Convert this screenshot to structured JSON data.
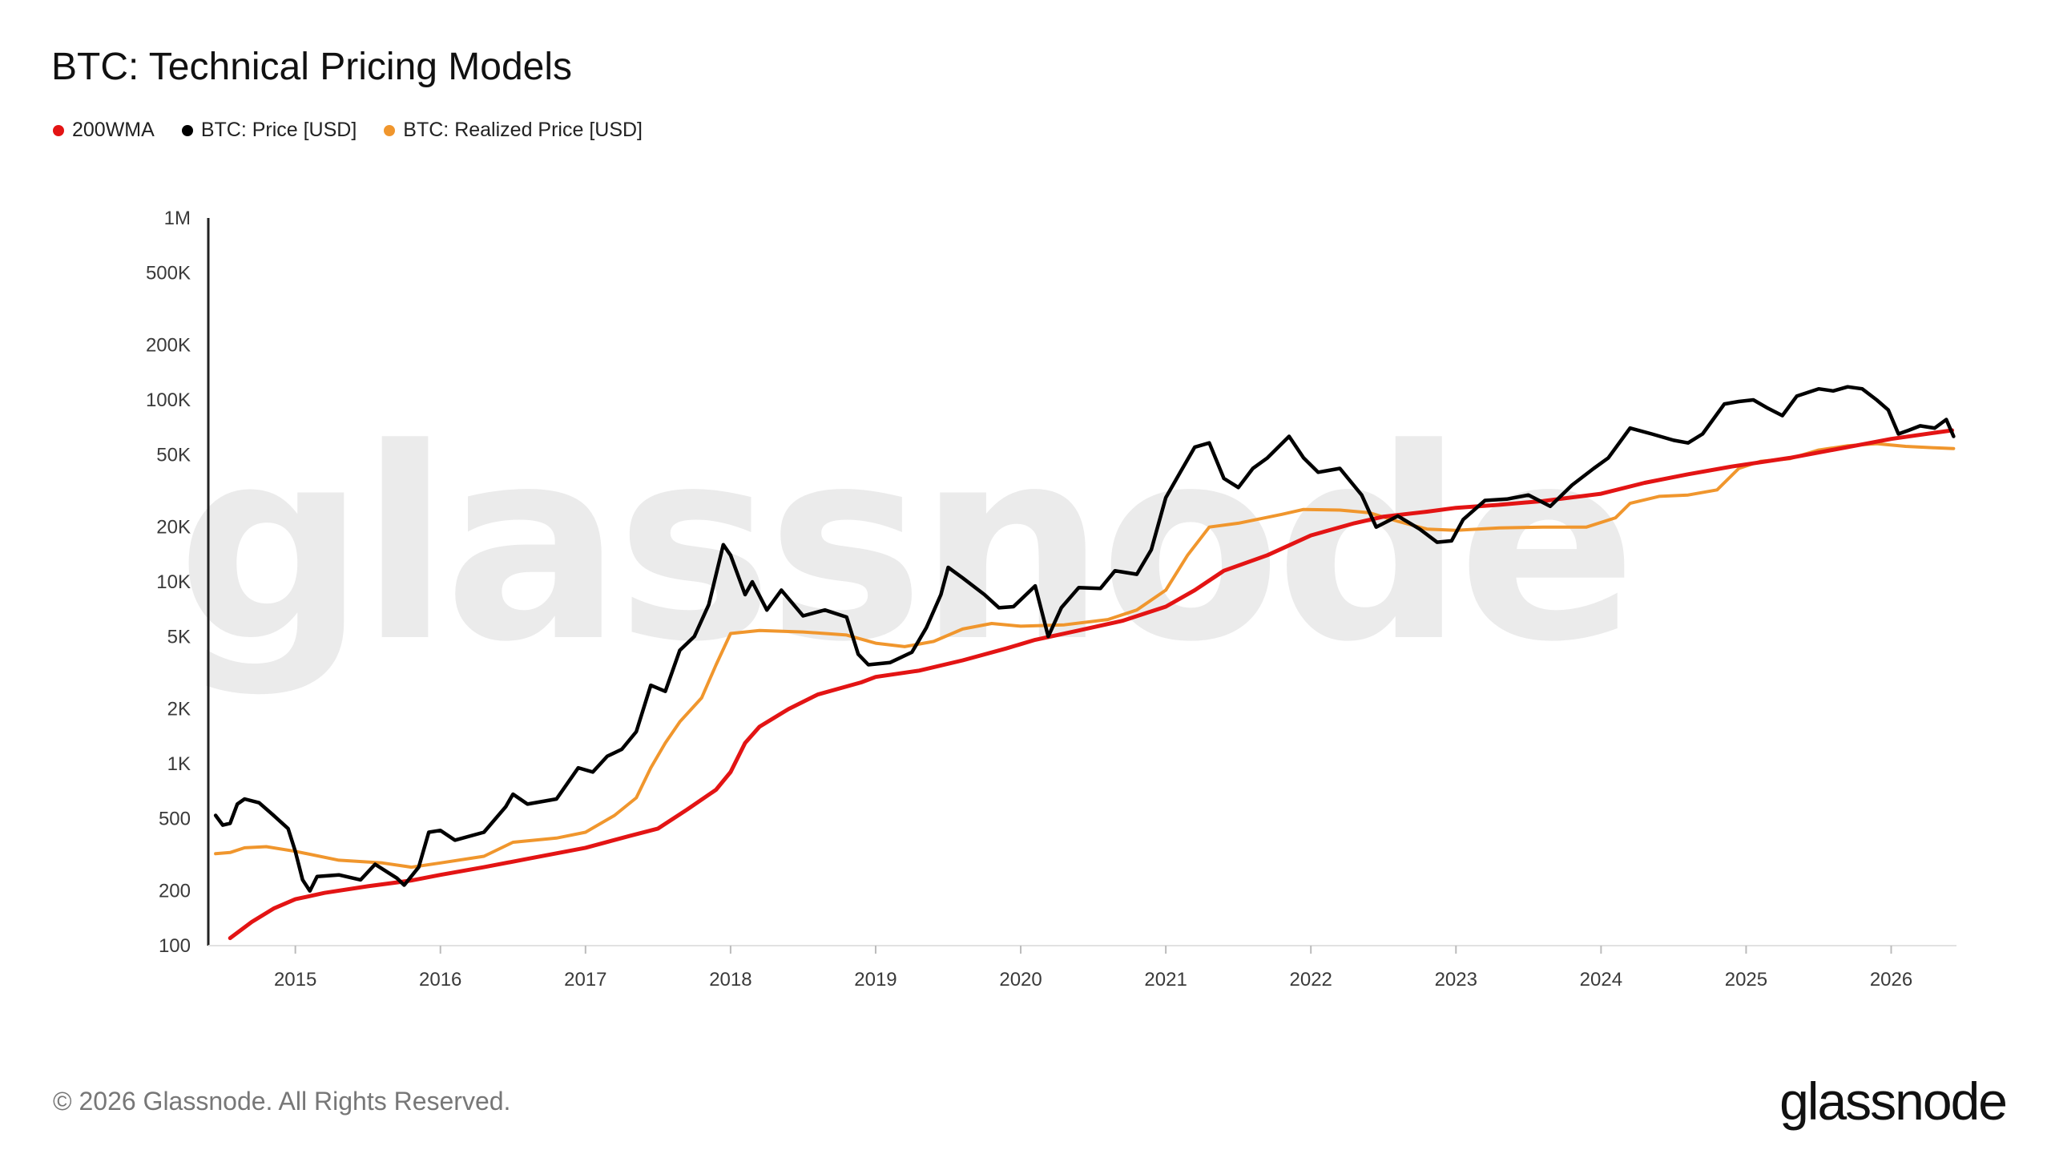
{
  "header": {
    "title": "BTC: Technical Pricing Models"
  },
  "legend": [
    {
      "label": "200WMA",
      "color": "#e31414"
    },
    {
      "label": "BTC: Price [USD]",
      "color": "#000000"
    },
    {
      "label": "BTC: Realized Price [USD]",
      "color": "#f0962d"
    }
  ],
  "watermark": "glassnode",
  "footer": {
    "copyright": "© 2026 Glassnode. All Rights Reserved.",
    "logo": "glassnode"
  },
  "chart_data": {
    "type": "line",
    "title": "BTC: Technical Pricing Models",
    "xlabel": "",
    "ylabel": "",
    "y_scale": "log",
    "ylim": [
      100,
      1000000
    ],
    "xlim": [
      2014.4,
      2026.45
    ],
    "y_ticks": [
      {
        "value": 1000000,
        "label": "1M"
      },
      {
        "value": 500000,
        "label": "500K"
      },
      {
        "value": 200000,
        "label": "200K"
      },
      {
        "value": 100000,
        "label": "100K"
      },
      {
        "value": 50000,
        "label": "50K"
      },
      {
        "value": 20000,
        "label": "20K"
      },
      {
        "value": 10000,
        "label": "10K"
      },
      {
        "value": 5000,
        "label": "5K"
      },
      {
        "value": 2000,
        "label": "2K"
      },
      {
        "value": 1000,
        "label": "1K"
      },
      {
        "value": 500,
        "label": "500"
      },
      {
        "value": 200,
        "label": "200"
      },
      {
        "value": 100,
        "label": "100"
      }
    ],
    "x_ticks": [
      {
        "value": 2015,
        "label": "2015"
      },
      {
        "value": 2016,
        "label": "2016"
      },
      {
        "value": 2017,
        "label": "2017"
      },
      {
        "value": 2018,
        "label": "2018"
      },
      {
        "value": 2019,
        "label": "2019"
      },
      {
        "value": 2020,
        "label": "2020"
      },
      {
        "value": 2021,
        "label": "2021"
      },
      {
        "value": 2022,
        "label": "2022"
      },
      {
        "value": 2023,
        "label": "2023"
      },
      {
        "value": 2024,
        "label": "2024"
      },
      {
        "value": 2025,
        "label": "2025"
      },
      {
        "value": 2026,
        "label": "2026"
      }
    ],
    "series": [
      {
        "name": "200WMA",
        "color": "#e31414",
        "points": [
          [
            2014.55,
            110
          ],
          [
            2014.7,
            135
          ],
          [
            2014.85,
            160
          ],
          [
            2015.0,
            180
          ],
          [
            2015.2,
            195
          ],
          [
            2015.5,
            212
          ],
          [
            2015.8,
            228
          ],
          [
            2016.0,
            245
          ],
          [
            2016.3,
            270
          ],
          [
            2016.6,
            300
          ],
          [
            2017.0,
            345
          ],
          [
            2017.3,
            400
          ],
          [
            2017.5,
            440
          ],
          [
            2017.7,
            560
          ],
          [
            2017.9,
            720
          ],
          [
            2018.0,
            900
          ],
          [
            2018.1,
            1300
          ],
          [
            2018.2,
            1600
          ],
          [
            2018.4,
            2000
          ],
          [
            2018.6,
            2400
          ],
          [
            2018.9,
            2800
          ],
          [
            2019.0,
            3000
          ],
          [
            2019.3,
            3250
          ],
          [
            2019.6,
            3700
          ],
          [
            2019.9,
            4300
          ],
          [
            2020.1,
            4800
          ],
          [
            2020.4,
            5400
          ],
          [
            2020.7,
            6100
          ],
          [
            2021.0,
            7300
          ],
          [
            2021.2,
            9000
          ],
          [
            2021.4,
            11500
          ],
          [
            2021.7,
            14000
          ],
          [
            2022.0,
            18000
          ],
          [
            2022.3,
            21000
          ],
          [
            2022.5,
            22800
          ],
          [
            2022.8,
            24300
          ],
          [
            2023.0,
            25500
          ],
          [
            2023.3,
            26500
          ],
          [
            2023.6,
            27800
          ],
          [
            2024.0,
            30500
          ],
          [
            2024.3,
            35000
          ],
          [
            2024.6,
            39000
          ],
          [
            2024.9,
            43000
          ],
          [
            2025.3,
            48000
          ],
          [
            2025.7,
            55000
          ],
          [
            2026.0,
            61000
          ],
          [
            2026.3,
            66000
          ],
          [
            2026.42,
            68000
          ]
        ]
      },
      {
        "name": "BTC: Price [USD]",
        "color": "#000000",
        "points": [
          [
            2014.45,
            520
          ],
          [
            2014.5,
            460
          ],
          [
            2014.55,
            470
          ],
          [
            2014.6,
            600
          ],
          [
            2014.65,
            640
          ],
          [
            2014.75,
            610
          ],
          [
            2014.85,
            520
          ],
          [
            2014.95,
            440
          ],
          [
            2015.0,
            330
          ],
          [
            2015.05,
            230
          ],
          [
            2015.1,
            200
          ],
          [
            2015.15,
            240
          ],
          [
            2015.3,
            245
          ],
          [
            2015.45,
            230
          ],
          [
            2015.55,
            280
          ],
          [
            2015.7,
            235
          ],
          [
            2015.75,
            215
          ],
          [
            2015.85,
            270
          ],
          [
            2015.92,
            420
          ],
          [
            2016.0,
            430
          ],
          [
            2016.1,
            380
          ],
          [
            2016.3,
            420
          ],
          [
            2016.45,
            580
          ],
          [
            2016.5,
            680
          ],
          [
            2016.6,
            600
          ],
          [
            2016.8,
            640
          ],
          [
            2016.95,
            950
          ],
          [
            2017.05,
            900
          ],
          [
            2017.15,
            1100
          ],
          [
            2017.25,
            1200
          ],
          [
            2017.35,
            1500
          ],
          [
            2017.45,
            2700
          ],
          [
            2017.55,
            2500
          ],
          [
            2017.65,
            4200
          ],
          [
            2017.75,
            5000
          ],
          [
            2017.85,
            7500
          ],
          [
            2017.95,
            16000
          ],
          [
            2018.0,
            14000
          ],
          [
            2018.1,
            8500
          ],
          [
            2018.15,
            10000
          ],
          [
            2018.25,
            7000
          ],
          [
            2018.35,
            9000
          ],
          [
            2018.5,
            6500
          ],
          [
            2018.65,
            7000
          ],
          [
            2018.8,
            6400
          ],
          [
            2018.88,
            4000
          ],
          [
            2018.95,
            3500
          ],
          [
            2019.1,
            3600
          ],
          [
            2019.25,
            4100
          ],
          [
            2019.35,
            5600
          ],
          [
            2019.45,
            8500
          ],
          [
            2019.5,
            12000
          ],
          [
            2019.6,
            10500
          ],
          [
            2019.75,
            8500
          ],
          [
            2019.85,
            7200
          ],
          [
            2019.95,
            7300
          ],
          [
            2020.1,
            9500
          ],
          [
            2020.19,
            5000
          ],
          [
            2020.28,
            7200
          ],
          [
            2020.4,
            9300
          ],
          [
            2020.55,
            9200
          ],
          [
            2020.65,
            11500
          ],
          [
            2020.8,
            11000
          ],
          [
            2020.9,
            15000
          ],
          [
            2021.0,
            29000
          ],
          [
            2021.1,
            40000
          ],
          [
            2021.2,
            55000
          ],
          [
            2021.3,
            58000
          ],
          [
            2021.4,
            37000
          ],
          [
            2021.5,
            33000
          ],
          [
            2021.6,
            42000
          ],
          [
            2021.7,
            48000
          ],
          [
            2021.85,
            63000
          ],
          [
            2021.95,
            48000
          ],
          [
            2022.05,
            40000
          ],
          [
            2022.2,
            42000
          ],
          [
            2022.35,
            30000
          ],
          [
            2022.45,
            20000
          ],
          [
            2022.6,
            23000
          ],
          [
            2022.75,
            19500
          ],
          [
            2022.87,
            16500
          ],
          [
            2022.97,
            16800
          ],
          [
            2023.05,
            22000
          ],
          [
            2023.2,
            28000
          ],
          [
            2023.35,
            28500
          ],
          [
            2023.5,
            30000
          ],
          [
            2023.65,
            26000
          ],
          [
            2023.8,
            34000
          ],
          [
            2023.95,
            42000
          ],
          [
            2024.05,
            48000
          ],
          [
            2024.2,
            70000
          ],
          [
            2024.35,
            65000
          ],
          [
            2024.5,
            60000
          ],
          [
            2024.6,
            58000
          ],
          [
            2024.7,
            65000
          ],
          [
            2024.85,
            95000
          ],
          [
            2024.95,
            98000
          ],
          [
            2025.05,
            100000
          ],
          [
            2025.15,
            90000
          ],
          [
            2025.25,
            82000
          ],
          [
            2025.35,
            105000
          ],
          [
            2025.5,
            115000
          ],
          [
            2025.6,
            112000
          ],
          [
            2025.7,
            118000
          ],
          [
            2025.8,
            115000
          ],
          [
            2025.9,
            100000
          ],
          [
            2025.98,
            88000
          ],
          [
            2026.05,
            65000
          ],
          [
            2026.12,
            68000
          ],
          [
            2026.2,
            72000
          ],
          [
            2026.3,
            70000
          ],
          [
            2026.38,
            78000
          ],
          [
            2026.43,
            63000
          ]
        ]
      },
      {
        "name": "BTC: Realized Price [USD]",
        "color": "#f0962d",
        "points": [
          [
            2014.45,
            320
          ],
          [
            2014.55,
            325
          ],
          [
            2014.65,
            345
          ],
          [
            2014.8,
            350
          ],
          [
            2015.0,
            330
          ],
          [
            2015.3,
            295
          ],
          [
            2015.6,
            285
          ],
          [
            2015.8,
            270
          ],
          [
            2016.0,
            285
          ],
          [
            2016.3,
            310
          ],
          [
            2016.5,
            370
          ],
          [
            2016.8,
            390
          ],
          [
            2017.0,
            420
          ],
          [
            2017.2,
            520
          ],
          [
            2017.35,
            650
          ],
          [
            2017.45,
            950
          ],
          [
            2017.55,
            1300
          ],
          [
            2017.65,
            1700
          ],
          [
            2017.8,
            2300
          ],
          [
            2017.9,
            3500
          ],
          [
            2018.0,
            5200
          ],
          [
            2018.2,
            5400
          ],
          [
            2018.5,
            5300
          ],
          [
            2018.8,
            5100
          ],
          [
            2019.0,
            4600
          ],
          [
            2019.2,
            4400
          ],
          [
            2019.4,
            4700
          ],
          [
            2019.6,
            5500
          ],
          [
            2019.8,
            5900
          ],
          [
            2020.0,
            5700
          ],
          [
            2020.3,
            5800
          ],
          [
            2020.6,
            6200
          ],
          [
            2020.8,
            7000
          ],
          [
            2021.0,
            9000
          ],
          [
            2021.15,
            14000
          ],
          [
            2021.3,
            20000
          ],
          [
            2021.5,
            21000
          ],
          [
            2021.8,
            23500
          ],
          [
            2021.95,
            25000
          ],
          [
            2022.2,
            24800
          ],
          [
            2022.4,
            24000
          ],
          [
            2022.6,
            21500
          ],
          [
            2022.8,
            19500
          ],
          [
            2023.0,
            19200
          ],
          [
            2023.3,
            19800
          ],
          [
            2023.6,
            20000
          ],
          [
            2023.9,
            20000
          ],
          [
            2024.1,
            22500
          ],
          [
            2024.2,
            27000
          ],
          [
            2024.4,
            29500
          ],
          [
            2024.6,
            30000
          ],
          [
            2024.8,
            32000
          ],
          [
            2024.95,
            42000
          ],
          [
            2025.1,
            46000
          ],
          [
            2025.3,
            47500
          ],
          [
            2025.5,
            53000
          ],
          [
            2025.7,
            56000
          ],
          [
            2025.9,
            57500
          ],
          [
            2026.1,
            55500
          ],
          [
            2026.3,
            54500
          ],
          [
            2026.43,
            54000
          ]
        ]
      }
    ]
  }
}
